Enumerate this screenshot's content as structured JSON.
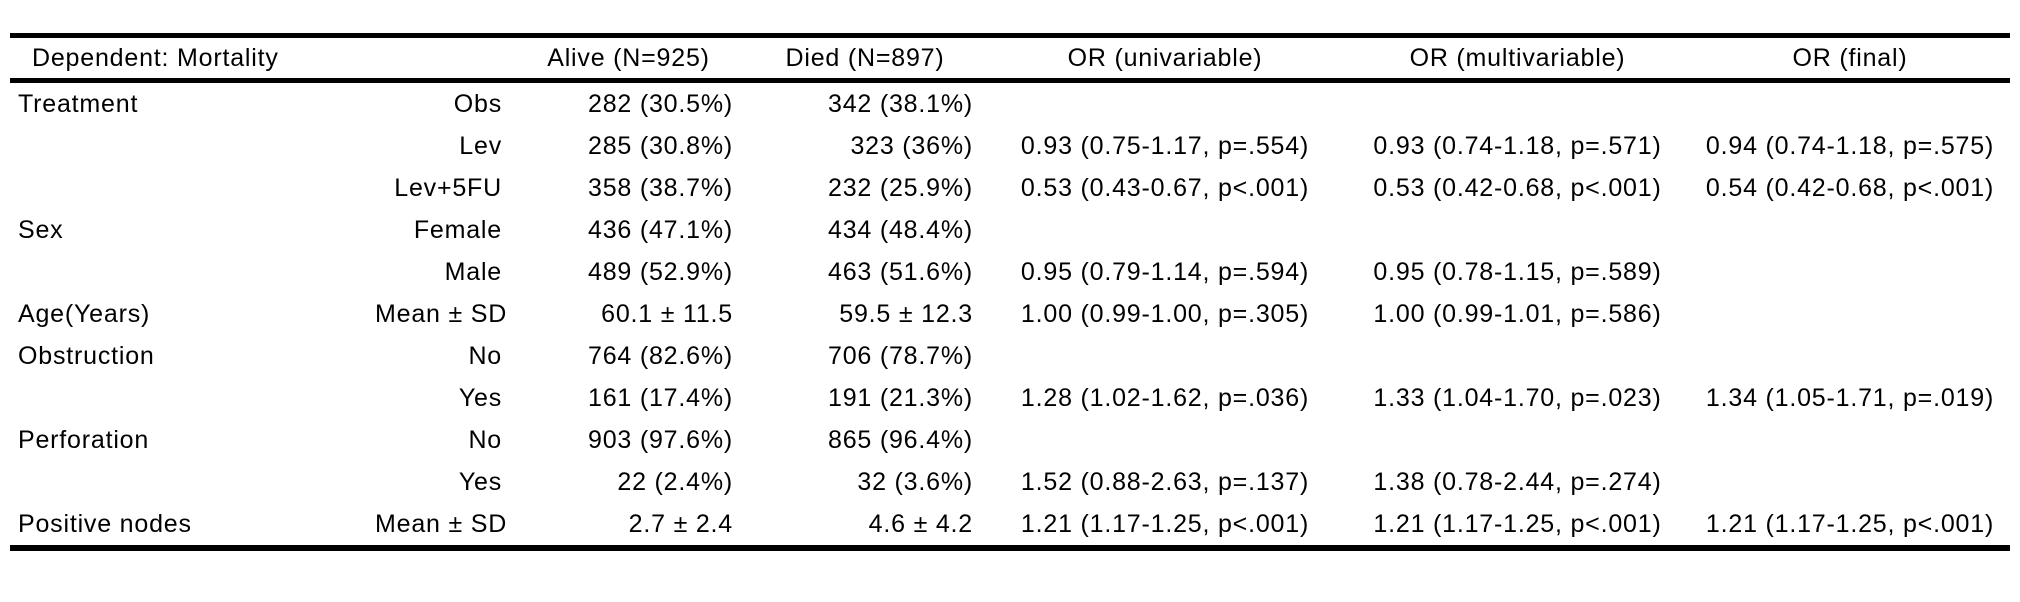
{
  "colors": {
    "background": "#ffffff",
    "text": "#000000",
    "rule": "#000000"
  },
  "table": {
    "header": [
      "Dependent: Mortality",
      "",
      "Alive (N=925)",
      "Died (N=897)",
      "OR (univariable)",
      "OR (multivariable)",
      "OR (final)"
    ],
    "rows": [
      {
        "variable": "Treatment",
        "level": "Obs",
        "alive": "282 (30.5%)",
        "died": "342 (38.1%)",
        "or_univariable": "",
        "or_multivariable": "",
        "or_final": ""
      },
      {
        "variable": "",
        "level": "Lev",
        "alive": "285 (30.8%)",
        "died": "323 (36%)",
        "or_univariable": "0.93 (0.75-1.17, p=.554)",
        "or_multivariable": "0.93 (0.74-1.18, p=.571)",
        "or_final": "0.94 (0.74-1.18, p=.575)"
      },
      {
        "variable": "",
        "level": "Lev+5FU",
        "alive": "358 (38.7%)",
        "died": "232 (25.9%)",
        "or_univariable": "0.53 (0.43-0.67, p<.001)",
        "or_multivariable": "0.53 (0.42-0.68, p<.001)",
        "or_final": "0.54 (0.42-0.68, p<.001)"
      },
      {
        "variable": "Sex",
        "level": "Female",
        "alive": "436 (47.1%)",
        "died": "434 (48.4%)",
        "or_univariable": "",
        "or_multivariable": "",
        "or_final": ""
      },
      {
        "variable": "",
        "level": "Male",
        "alive": "489 (52.9%)",
        "died": "463 (51.6%)",
        "or_univariable": "0.95 (0.79-1.14, p=.594)",
        "or_multivariable": "0.95 (0.78-1.15, p=.589)",
        "or_final": ""
      },
      {
        "variable": "Age(Years)",
        "level": "Mean ± SD",
        "alive": "60.1 ± 11.5",
        "died": "59.5 ± 12.3",
        "or_univariable": "1.00 (0.99-1.00, p=.305)",
        "or_multivariable": "1.00 (0.99-1.01, p=.586)",
        "or_final": ""
      },
      {
        "variable": "Obstruction",
        "level": "No",
        "alive": "764 (82.6%)",
        "died": "706 (78.7%)",
        "or_univariable": "",
        "or_multivariable": "",
        "or_final": ""
      },
      {
        "variable": "",
        "level": "Yes",
        "alive": "161 (17.4%)",
        "died": "191 (21.3%)",
        "or_univariable": "1.28 (1.02-1.62, p=.036)",
        "or_multivariable": "1.33 (1.04-1.70, p=.023)",
        "or_final": "1.34 (1.05-1.71, p=.019)"
      },
      {
        "variable": "Perforation",
        "level": "No",
        "alive": "903 (97.6%)",
        "died": "865 (96.4%)",
        "or_univariable": "",
        "or_multivariable": "",
        "or_final": ""
      },
      {
        "variable": "",
        "level": "Yes",
        "alive": "22 (2.4%)",
        "died": "32 (3.6%)",
        "or_univariable": "1.52 (0.88-2.63, p=.137)",
        "or_multivariable": "1.38 (0.78-2.44, p=.274)",
        "or_final": ""
      },
      {
        "variable": "Positive nodes",
        "level": "Mean ± SD",
        "alive": "2.7 ± 2.4",
        "died": "4.6 ± 4.2",
        "or_univariable": "1.21 (1.17-1.25, p<.001)",
        "or_multivariable": "1.21 (1.17-1.25, p<.001)",
        "or_final": "1.21 (1.17-1.25, p<.001)"
      }
    ]
  }
}
